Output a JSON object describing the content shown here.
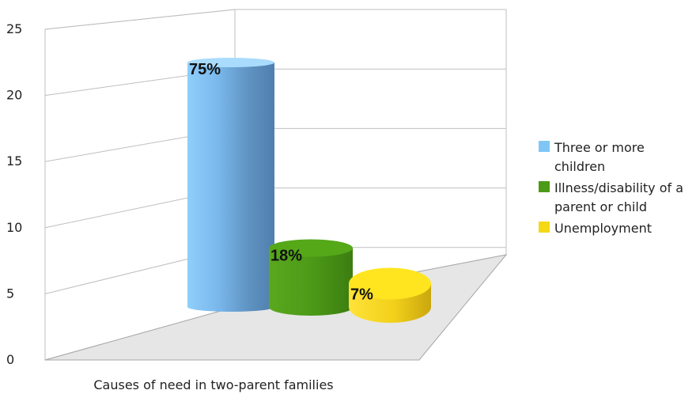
{
  "chart_data": {
    "type": "bar",
    "style": "3d-cylinder",
    "xlabel": "Causes of need in two-parent families",
    "ylim": [
      0,
      25
    ],
    "yticks": [
      "0",
      "5",
      "10",
      "15",
      "20",
      "25"
    ],
    "grid": true,
    "legend_position": "right",
    "series": [
      {
        "name": "Three or more children",
        "value": 22,
        "label": "75%",
        "color": "#7fc6f7"
      },
      {
        "name": "Illness/disability of a parent or child",
        "value": 5.3,
        "label": "18%",
        "color": "#4c9a17"
      },
      {
        "name": "Unemployment",
        "value": 2.1,
        "label": "7%",
        "color": "#f5d816"
      }
    ]
  }
}
